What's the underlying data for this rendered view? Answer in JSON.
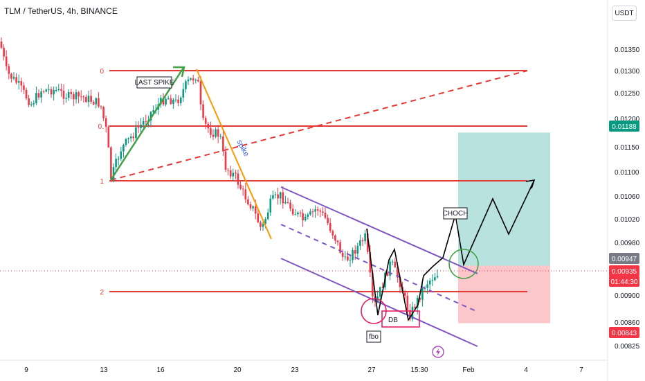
{
  "header": {
    "title": "TLM / TetherUS, 4h, BINANCE",
    "currency": "USDT"
  },
  "chart_data": {
    "type": "candlestick",
    "y_ticks": [
      "0.01350",
      "0.01300",
      "0.01250",
      "0.01200",
      "0.01150",
      "0.01100",
      "0.01060",
      "0.01020",
      "0.00980",
      "0.00900",
      "0.00860",
      "0.00825"
    ],
    "y_tick_values": [
      0.0135,
      0.013,
      0.0125,
      0.012,
      0.0115,
      0.011,
      0.0106,
      0.0102,
      0.0098,
      0.009,
      0.0086,
      0.00825
    ],
    "x_ticks": [
      "9",
      "13",
      "16",
      "20",
      "23",
      "27",
      "15:30",
      "Feb",
      "4",
      "7"
    ],
    "price_badges": [
      {
        "label": "0.01188",
        "value": 0.01188,
        "color": "#089981"
      },
      {
        "label": "0.00947",
        "value": 0.00947,
        "color": "#787b86"
      },
      {
        "label": "0.00935",
        "value": 0.00935,
        "color": "#f23645"
      },
      {
        "label": "01:44:30",
        "value": 0.00923,
        "color": "#f23645"
      },
      {
        "label": "0.00843",
        "value": 0.00843,
        "color": "#f23645"
      }
    ],
    "fib_levels": [
      {
        "label": "0",
        "value": 0.013
      },
      {
        "label": "0.",
        "value": 0.01188
      },
      {
        "label": "1",
        "value": 0.01085
      },
      {
        "label": "2",
        "value": 0.009
      }
    ],
    "annotations": {
      "last_spike": "LAST SPIKE",
      "spike": "spike",
      "choch": "CHOCH",
      "db": "DB",
      "fbo": "fbo"
    },
    "trade_box": {
      "entry": 0.00947,
      "target": 0.01188,
      "stop": 0.00843
    },
    "colors": {
      "up": "#089981",
      "down": "#f23645",
      "fib": "#e53935",
      "channel": "#7e57c2",
      "trend_up": "#43a047",
      "trend_down": "#ff9800"
    }
  }
}
